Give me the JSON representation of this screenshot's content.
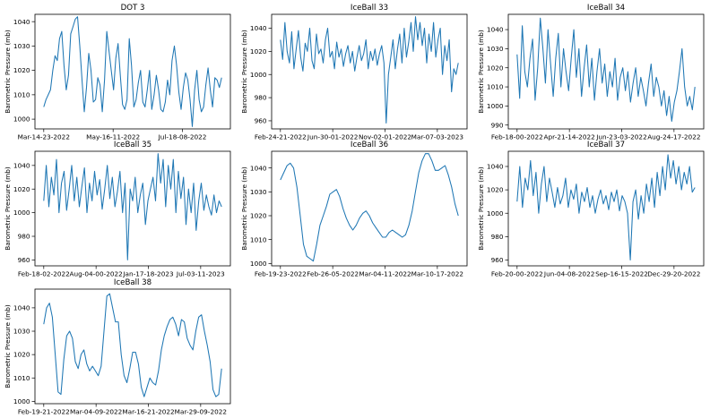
{
  "chart_data": [
    {
      "type": "line",
      "title": "DOT 3",
      "ylabel": "Barometric Pressure (mb)",
      "ylim": [
        996,
        1043
      ],
      "yticks": [
        1000,
        1010,
        1020,
        1030,
        1040
      ],
      "xticklabels": [
        "Mar-14-23-2022",
        "May-16-11-2022",
        "Jul-18-08-2022"
      ],
      "color": "#1f77b4",
      "values": [
        1005,
        1008,
        1010,
        1012,
        1020,
        1026,
        1024,
        1033,
        1036,
        1022,
        1012,
        1018,
        1035,
        1038,
        1041,
        1042,
        1030,
        1016,
        1003,
        1013,
        1027,
        1020,
        1007,
        1008,
        1017,
        1014,
        1003,
        1016,
        1036,
        1028,
        1020,
        1012,
        1025,
        1031,
        1018,
        1006,
        1004,
        1008,
        1033,
        1022,
        1005,
        1008,
        1015,
        1020,
        1007,
        1005,
        1012,
        1020,
        1004,
        1010,
        1018,
        1012,
        1004,
        1003,
        1007,
        1016,
        1010,
        1024,
        1030,
        1022,
        1011,
        1004,
        1013,
        1019,
        1016,
        1008,
        997,
        1012,
        1020,
        1008,
        1003,
        1005,
        1014,
        1021,
        1012,
        1005,
        1017,
        1016,
        1013,
        1017
      ]
    },
    {
      "type": "line",
      "title": "IceBall 33",
      "ylabel": "Barometric Pressure (mb)",
      "ylim": [
        953,
        1052
      ],
      "yticks": [
        960,
        980,
        1000,
        1020,
        1040
      ],
      "xticklabels": [
        "Feb-24-21-2022",
        "Jun-30-01-2022",
        "Nov-02-01-2022",
        "Mar-07-03-2023"
      ],
      "color": "#1f77b4",
      "values": [
        1030,
        1013,
        1045,
        1020,
        1010,
        1037,
        1005,
        1022,
        1038,
        1015,
        1003,
        1027,
        1020,
        1040,
        1012,
        1005,
        1035,
        1018,
        1022,
        1010,
        1030,
        1040,
        1015,
        1020,
        1005,
        1028,
        1015,
        1022,
        1007,
        1018,
        1025,
        1010,
        1020,
        1003,
        1015,
        1025,
        1012,
        1018,
        1030,
        1005,
        1020,
        1012,
        1022,
        1008,
        1018,
        1025,
        1010,
        958,
        1000,
        1015,
        1030,
        1005,
        1022,
        1035,
        1010,
        1040,
        1015,
        1028,
        1045,
        1020,
        1050,
        1030,
        1045,
        1025,
        1040,
        1010,
        1035,
        1020,
        1045,
        1015,
        1030,
        1040,
        1000,
        1025,
        1012,
        1030,
        985,
        1005,
        1000,
        1010
      ]
    },
    {
      "type": "line",
      "title": "IceBall 34",
      "ylabel": "Barometric Pressure (mb)",
      "ylim": [
        988,
        1048
      ],
      "yticks": [
        990,
        1000,
        1010,
        1020,
        1030,
        1040
      ],
      "xticklabels": [
        "Feb-18-00-2022",
        "Apr-21-14-2022",
        "Jun-23-03-2022",
        "Aug-24-17-2022"
      ],
      "color": "#1f77b4",
      "values": [
        1027,
        1004,
        1042,
        1018,
        1010,
        1025,
        1035,
        1003,
        1020,
        1046,
        1030,
        1012,
        1040,
        1022,
        1005,
        1025,
        1038,
        1010,
        1030,
        1018,
        1008,
        1025,
        1040,
        1015,
        1030,
        1005,
        1020,
        1032,
        1010,
        1025,
        1003,
        1018,
        1030,
        1012,
        1022,
        1005,
        1018,
        1010,
        1025,
        1003,
        1015,
        1020,
        1008,
        1018,
        1002,
        1012,
        1020,
        1005,
        1015,
        1008,
        1000,
        1012,
        1022,
        1005,
        1015,
        1010,
        1000,
        1008,
        995,
        1005,
        992,
        1002,
        1008,
        1018,
        1030,
        1010,
        1000,
        1005,
        998,
        1010
      ]
    },
    {
      "type": "line",
      "title": "IceBall 35",
      "ylabel": "Barometric Pressure (mb)",
      "ylim": [
        955,
        1052
      ],
      "yticks": [
        960,
        980,
        1000,
        1020,
        1040
      ],
      "xticklabels": [
        "Feb-18-02-2022",
        "Aug-04-00-2022",
        "Jan-17-18-2023",
        "Jul-03-11-2023"
      ],
      "color": "#1f77b4",
      "values": [
        1010,
        1040,
        1005,
        1030,
        1015,
        1045,
        1000,
        1025,
        1035,
        1002,
        1020,
        1040,
        1010,
        1030,
        1005,
        1022,
        1038,
        1000,
        1025,
        1010,
        1035,
        1015,
        1028,
        1003,
        1020,
        1040,
        1012,
        1030,
        1005,
        1018,
        1035,
        1000,
        1025,
        960,
        1020,
        1010,
        1030,
        1000,
        1015,
        1025,
        990,
        1010,
        1020,
        1030,
        1010,
        1050,
        1025,
        1045,
        1005,
        1040,
        1020,
        1045,
        1000,
        1035,
        1012,
        1030,
        990,
        1020,
        1000,
        1025,
        985,
        1010,
        1025,
        1002,
        1015,
        1005,
        998,
        1015,
        1000,
        1010,
        1005
      ]
    },
    {
      "type": "line",
      "title": "IceBall 36",
      "ylabel": "Barometric Pressure (mb)",
      "ylim": [
        999,
        1047
      ],
      "yticks": [
        1000,
        1010,
        1020,
        1030,
        1040
      ],
      "xticklabels": [
        "Feb-19-23-2022",
        "Feb-26-05-2022",
        "Mar-04-11-2022",
        "Mar-10-17-2022"
      ],
      "color": "#1f77b4",
      "values": [
        1035,
        1038,
        1041,
        1042,
        1040,
        1032,
        1020,
        1008,
        1003,
        1002,
        1001,
        1008,
        1016,
        1020,
        1024,
        1029,
        1030,
        1031,
        1028,
        1023,
        1019,
        1016,
        1014,
        1016,
        1019,
        1021,
        1022,
        1020,
        1017,
        1015,
        1013,
        1011,
        1011,
        1013,
        1014,
        1013,
        1012,
        1011,
        1012,
        1016,
        1022,
        1030,
        1038,
        1043,
        1046,
        1046,
        1043,
        1039,
        1039,
        1040,
        1041,
        1037,
        1032,
        1025,
        1020
      ]
    },
    {
      "type": "line",
      "title": "IceBall 37",
      "ylabel": "Barometric Pressure (mb)",
      "ylim": [
        955,
        1053
      ],
      "yticks": [
        960,
        980,
        1000,
        1020,
        1040
      ],
      "xticklabels": [
        "Feb-20-00-2022",
        "Jun-04-08-2022",
        "Sep-16-15-2022",
        "Dec-29-20-2022"
      ],
      "color": "#1f77b4",
      "values": [
        1010,
        1040,
        1005,
        1030,
        1020,
        1045,
        1015,
        1035,
        1000,
        1025,
        1040,
        1010,
        1030,
        1018,
        1005,
        1022,
        1008,
        1015,
        1030,
        1005,
        1020,
        1012,
        1025,
        1000,
        1018,
        1010,
        1022,
        1005,
        1015,
        1000,
        1012,
        1020,
        1008,
        1015,
        1003,
        1018,
        1010,
        1020,
        1002,
        1015,
        1010,
        1000,
        960,
        1010,
        1020,
        995,
        1015,
        1000,
        1025,
        1010,
        1030,
        1005,
        1035,
        1015,
        1040,
        1020,
        1050,
        1030,
        1045,
        1025,
        1040,
        1020,
        1035,
        1025,
        1040,
        1018,
        1022
      ]
    },
    {
      "type": "line",
      "title": "IceBall 38",
      "ylabel": "Barometric Pressure (mb)",
      "ylim": [
        999,
        1048
      ],
      "yticks": [
        1000,
        1010,
        1020,
        1030,
        1040
      ],
      "xticklabels": [
        "Feb-19-21-2022",
        "Mar-04-09-2022",
        "Mar-16-21-2022",
        "Mar-29-09-2022"
      ],
      "color": "#1f77b4",
      "values": [
        1033,
        1040,
        1042,
        1036,
        1020,
        1004,
        1003,
        1018,
        1028,
        1030,
        1027,
        1017,
        1014,
        1020,
        1022,
        1016,
        1013,
        1015,
        1013,
        1011,
        1015,
        1030,
        1045,
        1046,
        1040,
        1034,
        1034,
        1020,
        1011,
        1008,
        1014,
        1021,
        1021,
        1016,
        1006,
        1002,
        1006,
        1010,
        1008,
        1007,
        1013,
        1022,
        1028,
        1032,
        1035,
        1036,
        1033,
        1028,
        1035,
        1034,
        1027,
        1024,
        1022,
        1030,
        1036,
        1037,
        1030,
        1024,
        1017,
        1005,
        1002,
        1003,
        1014
      ]
    }
  ]
}
